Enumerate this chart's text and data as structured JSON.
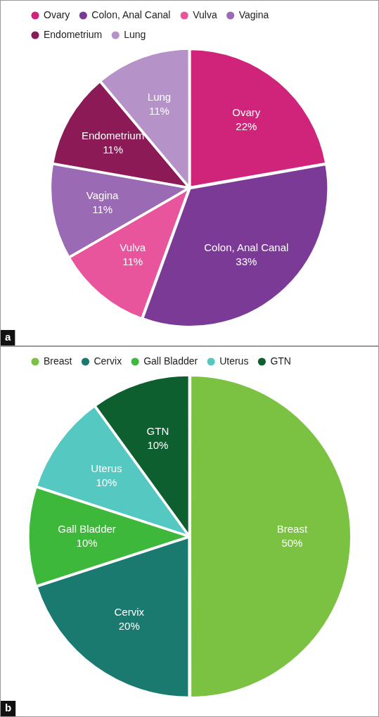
{
  "chart_data": [
    {
      "type": "pie",
      "categories": [
        "Ovary",
        "Colon, Anal Canal",
        "Vulva",
        "Vagina",
        "Endometrium",
        "Lung"
      ],
      "values": [
        22,
        33,
        11,
        11,
        11,
        11
      ],
      "value_labels": [
        "22%",
        "33%",
        "11%",
        "11%",
        "11%",
        "11%"
      ],
      "colors": [
        "#d0237a",
        "#7b3a96",
        "#e8559c",
        "#9a6ab4",
        "#8c1a56",
        "#b593c9"
      ],
      "legend": "top",
      "annotations": [
        "a"
      ]
    },
    {
      "type": "pie",
      "categories": [
        "Breast",
        "Cervix",
        "Gall Bladder",
        "Uterus",
        "GTN"
      ],
      "values": [
        50,
        20,
        10,
        10,
        10
      ],
      "value_labels": [
        "50%",
        "20%",
        "10%",
        "10%",
        "10%"
      ],
      "colors": [
        "#7cc242",
        "#1a7a70",
        "#3db83a",
        "#56c8c2",
        "#0e5f2f"
      ],
      "legend": "top",
      "annotations": [
        "b"
      ]
    }
  ]
}
